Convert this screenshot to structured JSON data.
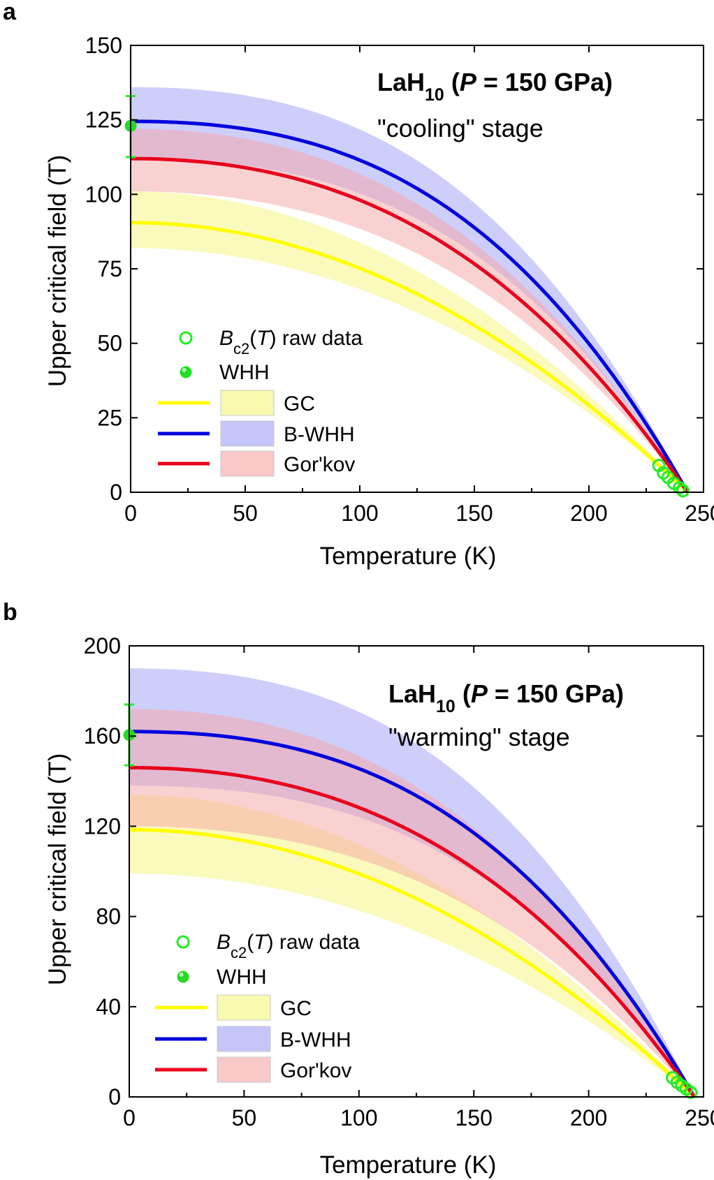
{
  "chart_data": [
    {
      "panel_label": "a",
      "type": "line",
      "xlabel": "Temperature (K)",
      "ylabel": "Upper critical field (T)",
      "xlim": [
        0,
        250
      ],
      "ylim": [
        0,
        150
      ],
      "xticks": [
        0,
        50,
        100,
        150,
        200,
        250
      ],
      "yticks": [
        0,
        25,
        50,
        75,
        100,
        125,
        150
      ],
      "annotation": {
        "compound": "LaH",
        "subscript": "10",
        "open": " (",
        "pvar": "P",
        "pressure": " = 150 GPa)",
        "stage": "\"cooling\" stage"
      },
      "legend": {
        "raw_label_pre": "B",
        "raw_label_sub": "c2",
        "raw_label_mid": "(",
        "raw_label_var": "T",
        "raw_label_post": ") raw data",
        "whh_label": "WHH",
        "position": "left-middle"
      },
      "tc": 243,
      "series": [
        {
          "name": "GC",
          "color": "#ffff00",
          "band_color": "#f5f57a",
          "b0": 90.5,
          "band": [
            82,
            101
          ],
          "shape": "gc"
        },
        {
          "name": "B-WHH",
          "color": "#0000dd",
          "band_color": "#9e9ef5",
          "b0": 124.5,
          "band": [
            112,
            136
          ],
          "shape": "whh"
        },
        {
          "name": "Gor'kov",
          "color": "#e8001c",
          "band_color": "#f5a3a3",
          "b0": 112,
          "band": [
            101,
            122
          ],
          "shape": "gorkov"
        }
      ],
      "whh_point": {
        "x": 0,
        "y": 123,
        "err_low": 112.5,
        "err_high": 133
      },
      "raw_data": [
        [
          230.5,
          9
        ],
        [
          232.5,
          6.5
        ],
        [
          234.5,
          5
        ],
        [
          237,
          3
        ],
        [
          239.5,
          1.5
        ],
        [
          241,
          0.5
        ]
      ]
    },
    {
      "panel_label": "b",
      "type": "line",
      "xlabel": "Temperature (K)",
      "ylabel": "Upper critical field (T)",
      "xlim": [
        0,
        250
      ],
      "ylim": [
        0,
        200
      ],
      "xticks": [
        0,
        50,
        100,
        150,
        200,
        250
      ],
      "yticks": [
        0,
        40,
        80,
        120,
        160,
        200
      ],
      "annotation": {
        "compound": "LaH",
        "subscript": "10",
        "open": " (",
        "pvar": "P",
        "pressure": " = 150 GPa)",
        "stage": "\"warming\" stage"
      },
      "legend": {
        "raw_label_pre": "B",
        "raw_label_sub": "c2",
        "raw_label_mid": "(",
        "raw_label_var": "T",
        "raw_label_post": ") raw data",
        "whh_label": "WHH",
        "position": "left-middle"
      },
      "tc": 246,
      "series": [
        {
          "name": "GC",
          "color": "#ffff00",
          "band_color": "#f5f57a",
          "b0": 118.5,
          "band": [
            99,
            134
          ],
          "shape": "gc"
        },
        {
          "name": "B-WHH",
          "color": "#0000dd",
          "band_color": "#9e9ef5",
          "b0": 162,
          "band": [
            138,
            190
          ],
          "shape": "whh"
        },
        {
          "name": "Gor'kov",
          "color": "#e8001c",
          "band_color": "#f5a3a3",
          "b0": 146,
          "band": [
            120,
            172
          ],
          "shape": "gorkov"
        }
      ],
      "whh_point": {
        "x": 0,
        "y": 160.5,
        "err_low": 147,
        "err_high": 174
      },
      "raw_data": [
        [
          236.5,
          8.5
        ],
        [
          238.5,
          6.5
        ],
        [
          240.5,
          5
        ],
        [
          242.5,
          3.5
        ],
        [
          244.5,
          2
        ]
      ]
    }
  ]
}
